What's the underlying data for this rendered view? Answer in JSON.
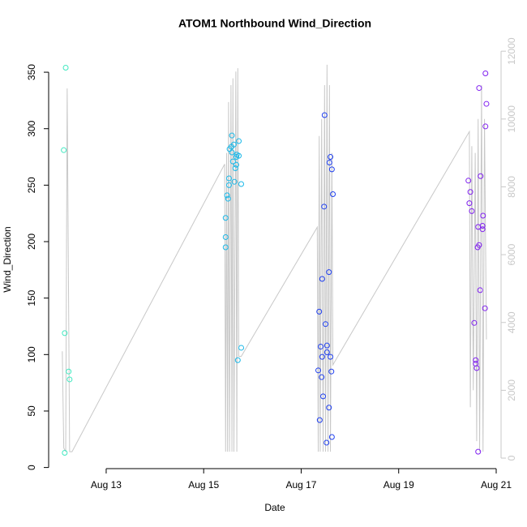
{
  "chart_data": {
    "type": "scatter",
    "title": "ATOM1 Northbound Wind_Direction",
    "x_label": "Date",
    "y_label": "Wind_Direction",
    "xlim": [
      11.82,
      21.1
    ],
    "xticks": [
      {
        "value": 13,
        "label": "Aug 13"
      },
      {
        "value": 15,
        "label": "Aug 15"
      },
      {
        "value": 17,
        "label": "Aug 17"
      },
      {
        "value": 19,
        "label": "Aug 19"
      },
      {
        "value": 21,
        "label": "Aug 21"
      }
    ],
    "ylim": [
      -1,
      368
    ],
    "yticks": [
      0,
      50,
      100,
      150,
      200,
      250,
      300,
      350
    ],
    "y2lim": [
      -310,
      11980
    ],
    "y2ticks": [
      0,
      2000,
      4000,
      6000,
      8000,
      10000,
      12000
    ],
    "series": [
      {
        "color": "#40e8c0",
        "x": [
          12.17,
          12.13,
          12.15,
          12.15,
          12.23,
          12.25
        ],
        "values": [
          354,
          281,
          119,
          13,
          85,
          78
        ]
      },
      {
        "color": "#1ab8e8",
        "x": [
          15.45,
          15.45,
          15.45,
          15.5,
          15.48,
          15.52,
          15.52,
          15.53,
          15.57,
          15.58,
          15.58,
          15.6,
          15.62,
          15.65,
          15.67,
          15.68,
          15.72,
          15.72,
          15.67,
          15.63,
          15.77,
          15.77,
          15.7
        ],
        "values": [
          195,
          204,
          221,
          238,
          241,
          250,
          256,
          282,
          284,
          279,
          294,
          271,
          286,
          265,
          275,
          277,
          276,
          289,
          268,
          253,
          251,
          106,
          95
        ]
      },
      {
        "color": "#2040f0",
        "x": [
          17.35,
          17.37,
          17.38,
          17.4,
          17.42,
          17.43,
          17.43,
          17.45,
          17.47,
          17.48,
          17.5,
          17.52,
          17.53,
          17.53,
          17.57,
          17.57,
          17.58,
          17.6,
          17.6,
          17.62,
          17.63,
          17.65,
          17.63
        ],
        "values": [
          86,
          138,
          42,
          107,
          80,
          167,
          98,
          63,
          231,
          312,
          127,
          22,
          102,
          108,
          173,
          53,
          270,
          275,
          98,
          85,
          264,
          242,
          27
        ]
      },
      {
        "color": "#8020f0",
        "x": [
          20.43,
          20.47,
          20.45,
          20.5,
          20.55,
          20.58,
          20.58,
          20.6,
          20.62,
          20.63,
          20.65,
          20.63,
          20.67,
          20.68,
          20.65,
          20.72,
          20.72,
          20.73,
          20.77,
          20.78,
          20.78,
          20.8
        ],
        "values": [
          254,
          244,
          234,
          227,
          128,
          95,
          92,
          88,
          195,
          213,
          197,
          14,
          157,
          258,
          336,
          214,
          211,
          223,
          141,
          302,
          349,
          322
        ]
      },
      {
        "type": "line",
        "axis": "y2",
        "color": "#c8c8c8",
        "x": [
          12.1,
          12.13,
          12.17,
          12.2,
          12.25,
          12.3,
          15.43,
          15.45,
          15.47,
          15.49,
          15.51,
          15.53,
          15.56,
          15.58,
          15.6,
          15.62,
          15.66,
          15.68,
          15.7,
          15.72,
          15.77,
          17.33,
          17.35,
          17.37,
          17.39,
          17.42,
          17.45,
          17.48,
          17.5,
          17.53,
          17.55,
          17.58,
          17.6,
          17.63,
          17.65,
          20.45,
          20.47,
          20.5,
          20.53,
          20.57,
          20.6,
          20.63,
          20.66,
          20.7,
          20.73,
          20.76,
          20.8
        ],
        "values": [
          3150,
          300,
          190,
          10900,
          190,
          190,
          8670,
          190,
          9000,
          190,
          10500,
          190,
          11000,
          190,
          11200,
          190,
          11400,
          190,
          11500,
          3000,
          3000,
          6810,
          190,
          9500,
          190,
          10000,
          190,
          11000,
          190,
          11600,
          190,
          11000,
          190,
          9000,
          2750,
          9630,
          1500,
          9200,
          2000,
          9000,
          500,
          10000,
          190,
          11000,
          190,
          10000,
          3500
        ]
      }
    ]
  }
}
